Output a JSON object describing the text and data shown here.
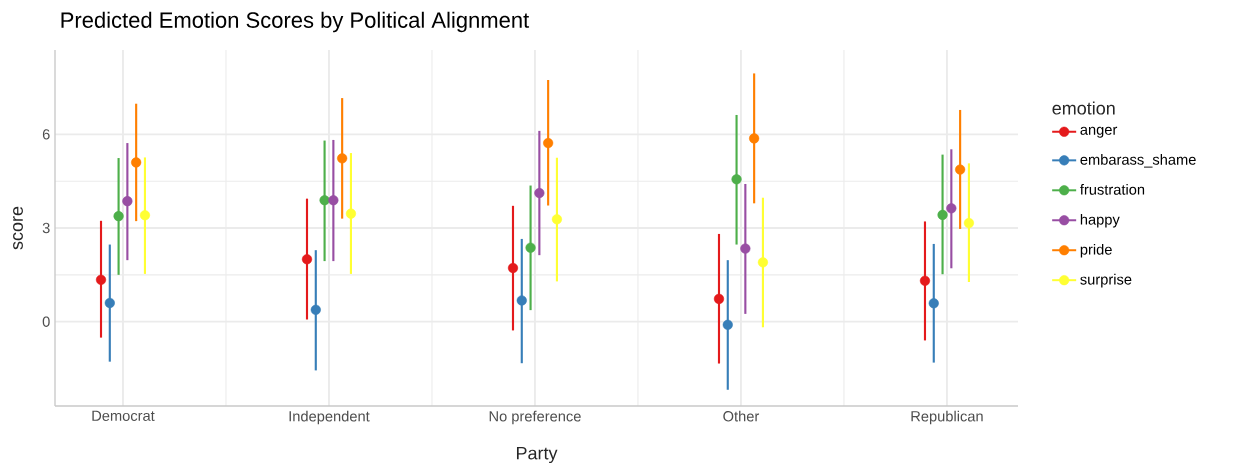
{
  "chart_data": {
    "type": "scatter",
    "title": "Predicted Emotion Scores by Political Alignment",
    "xlabel": "Party",
    "ylabel": "score",
    "legend_title": "emotion",
    "categories": [
      "Democrat",
      "Independent",
      "No preference",
      "Other",
      "Republican"
    ],
    "series": [
      {
        "name": "anger",
        "color": "#e41a1c",
        "values": [
          1.34,
          2.0,
          1.72,
          0.73,
          1.31
        ],
        "errors": [
          [
            -0.51,
            3.23
          ],
          [
            0.07,
            3.94
          ],
          [
            -0.28,
            3.71
          ],
          [
            -1.34,
            2.81
          ],
          [
            -0.6,
            3.21
          ]
        ]
      },
      {
        "name": "embarass_shame",
        "color": "#377eb8",
        "values": [
          0.6,
          0.38,
          0.68,
          -0.1,
          0.59
        ],
        "errors": [
          [
            -1.28,
            2.47
          ],
          [
            -1.56,
            2.29
          ],
          [
            -1.33,
            2.65
          ],
          [
            -2.18,
            1.97
          ],
          [
            -1.31,
            2.49
          ]
        ]
      },
      {
        "name": "frustration",
        "color": "#4daf4a",
        "values": [
          3.38,
          3.89,
          2.37,
          4.56,
          3.42
        ],
        "errors": [
          [
            1.5,
            5.24
          ],
          [
            1.94,
            5.8
          ],
          [
            0.37,
            4.36
          ],
          [
            2.47,
            6.62
          ],
          [
            1.52,
            5.35
          ]
        ]
      },
      {
        "name": "happy",
        "color": "#984ea3",
        "values": [
          3.86,
          3.89,
          4.12,
          2.34,
          3.63
        ],
        "errors": [
          [
            1.97,
            5.72
          ],
          [
            1.94,
            5.82
          ],
          [
            2.13,
            6.11
          ],
          [
            0.25,
            4.41
          ],
          [
            1.71,
            5.52
          ]
        ]
      },
      {
        "name": "pride",
        "color": "#ff7f00",
        "values": [
          5.1,
          5.23,
          5.72,
          5.87,
          4.87
        ],
        "errors": [
          [
            3.22,
            6.98
          ],
          [
            3.3,
            7.16
          ],
          [
            3.72,
            7.74
          ],
          [
            3.79,
            7.95
          ],
          [
            2.97,
            6.78
          ]
        ]
      },
      {
        "name": "surprise",
        "color": "#ffff33",
        "values": [
          3.41,
          3.46,
          3.28,
          1.9,
          3.16
        ],
        "errors": [
          [
            1.53,
            5.26
          ],
          [
            1.53,
            5.4
          ],
          [
            1.29,
            5.25
          ],
          [
            -0.18,
            3.97
          ],
          [
            1.27,
            5.07
          ]
        ]
      }
    ],
    "ylim": [
      -2.7,
      8.7
    ],
    "yticks": [
      0,
      3,
      6
    ],
    "grid": true,
    "legend": "right",
    "marker": "circle"
  }
}
